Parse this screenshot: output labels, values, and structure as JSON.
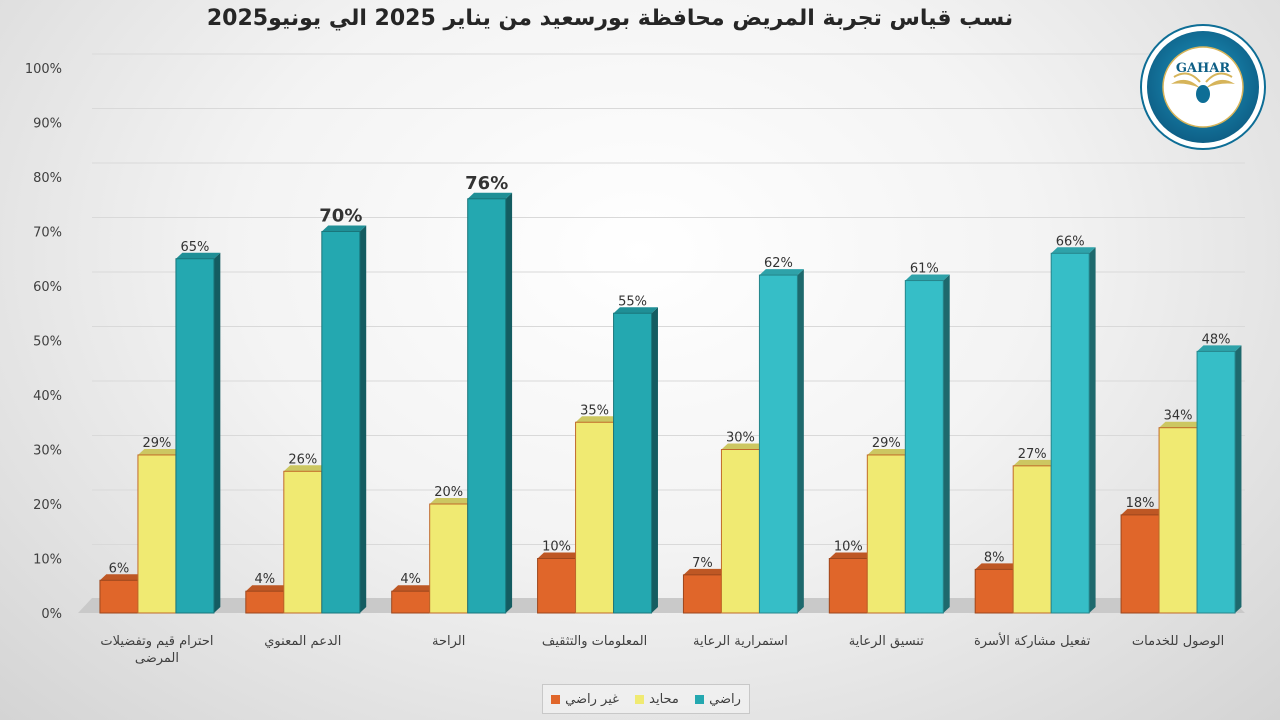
{
  "colors": {
    "orange": "#e0662a",
    "yellow": "#f0ea72",
    "teal": "#24a8b0",
    "teal_bright": "#36bec7"
  },
  "logo": {
    "text": "GAHAR",
    "icon": "gahar-eagle-seal"
  },
  "chart_data": {
    "type": "bar",
    "title": "نسب قياس تجربة المريض محافظة بورسعيد من يناير 2025 الي يونيو2025",
    "categories": [
      "احترام قيم وتفضيلات المرضى",
      "الدعم المعنوي",
      "الراحة",
      "المعلومات والتثقيف",
      "استمرارية الرعاية",
      "تنسيق الرعاية",
      "تفعيل مشاركة الأسرة",
      "الوصول للخدمات"
    ],
    "series": [
      {
        "name": "غير راضي",
        "values": [
          6,
          4,
          4,
          10,
          7,
          10,
          8,
          18
        ],
        "labels": [
          "6%",
          "4%",
          "4%",
          "10%",
          "7%",
          "10%",
          "8%",
          "18%"
        ]
      },
      {
        "name": "محايد",
        "values": [
          29,
          26,
          20,
          35,
          30,
          29,
          27,
          34
        ],
        "labels": [
          "29%",
          "26%",
          "20%",
          "35%",
          "30%",
          "29%",
          "27%",
          "34%"
        ]
      },
      {
        "name": "راضي",
        "values": [
          65,
          70,
          76,
          55,
          62,
          61,
          66,
          48
        ],
        "labels": [
          "65%",
          "70%",
          "76%",
          "55%",
          "62%",
          "61%",
          "66%",
          "48%"
        ]
      }
    ],
    "y_ticks": [
      "0%",
      "10%",
      "20%",
      "30%",
      "40%",
      "50%",
      "60%",
      "70%",
      "80%",
      "90%",
      "100%"
    ],
    "ylim": [
      0,
      100
    ],
    "grid": true,
    "legend_position": "bottom"
  }
}
